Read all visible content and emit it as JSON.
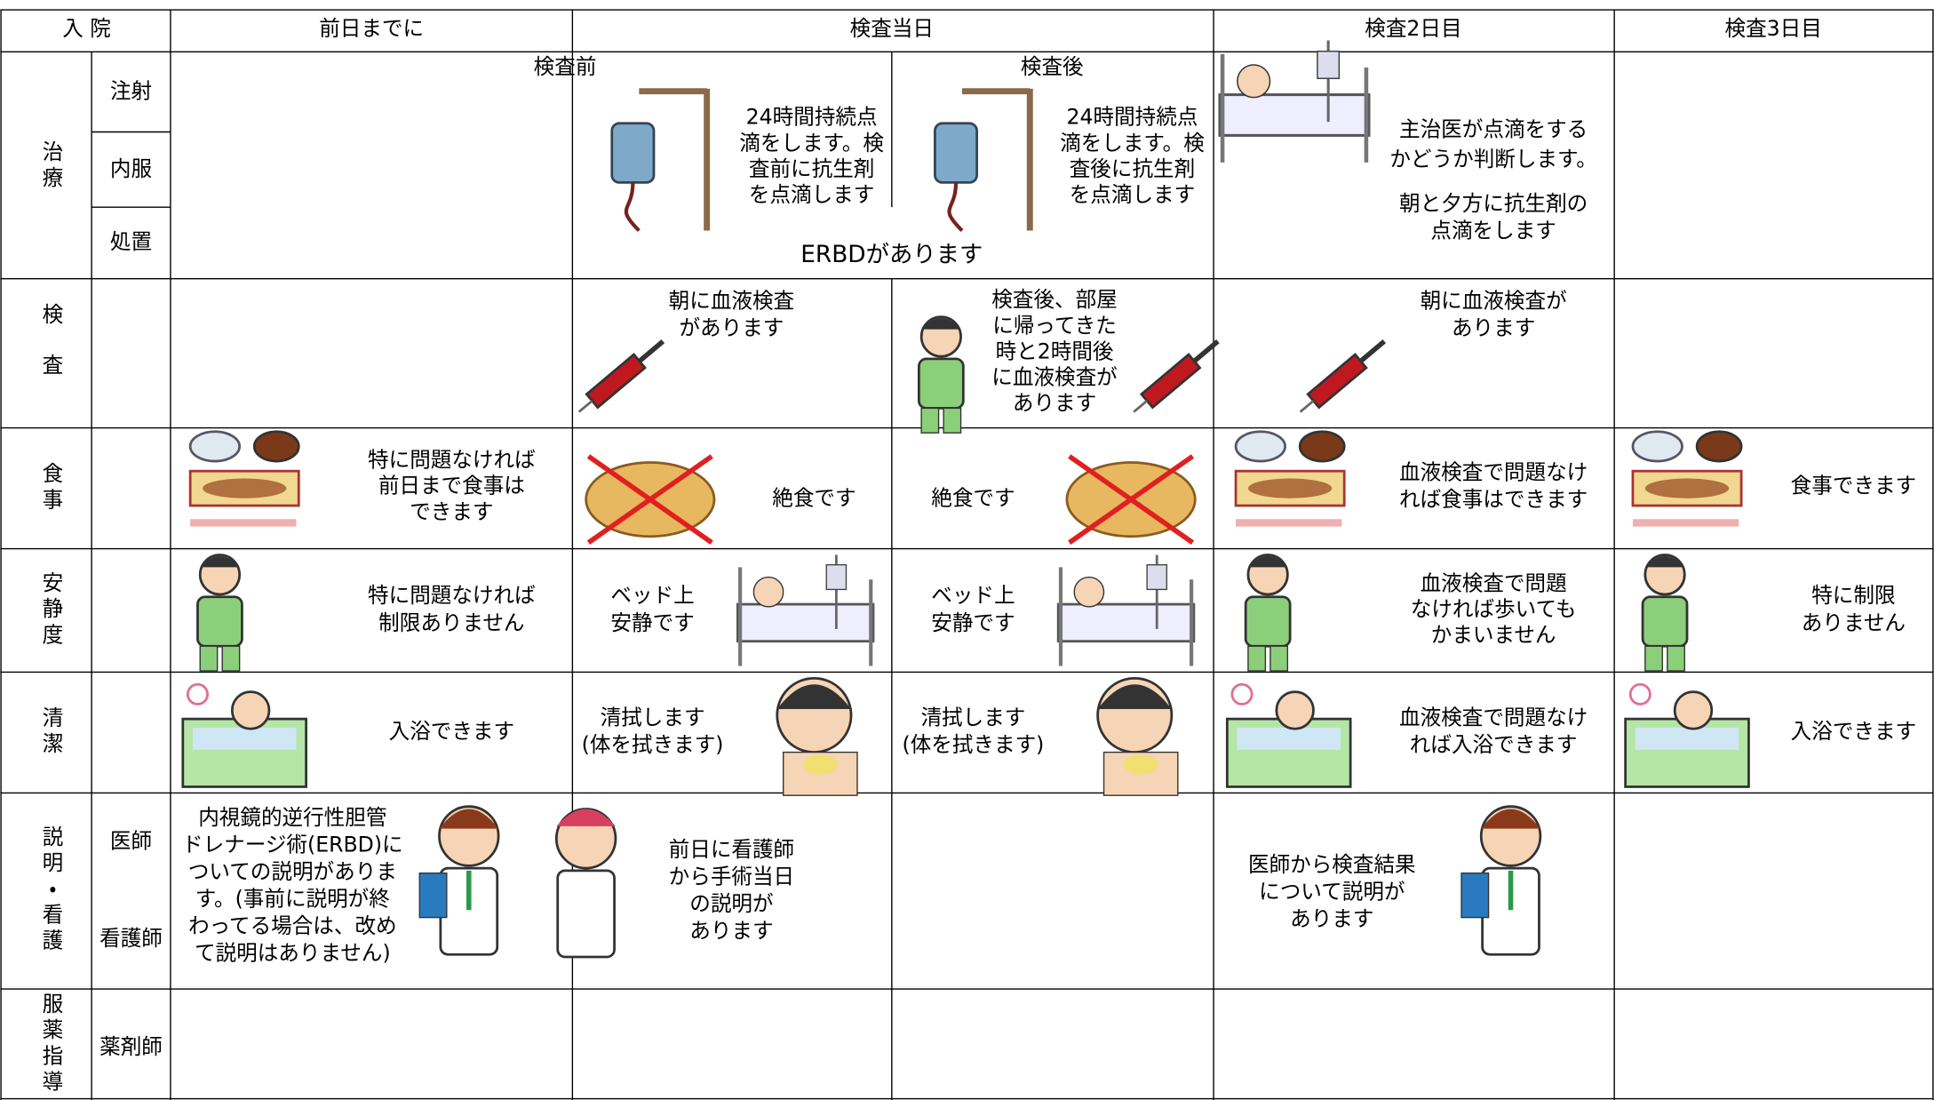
{
  "header": {
    "admission": "入 院",
    "columns": [
      "前日までに",
      "検査当日",
      "検査2日目",
      "検査3日目"
    ],
    "sub_columns": [
      "検査前",
      "検査後"
    ]
  },
  "treatment": {
    "label": "治療",
    "sublabels": [
      "注射",
      "内服",
      "処置"
    ],
    "before": [
      "24時間持続点",
      "滴をします。検",
      "査前に抗生剤",
      "を点滴します"
    ],
    "after": [
      "24時間持続点",
      "滴をします。検",
      "査後に抗生剤",
      "を点滴します"
    ],
    "day2": [
      "主治医が点滴をする",
      "かどうか判断します。"
    ],
    "day2_note": [
      "朝と夕方に抗生剤の",
      "点滴をします"
    ],
    "procedure": "ERBDがあります"
  },
  "examination": {
    "label": "検査",
    "before": [
      "朝に血液検査",
      "があります"
    ],
    "after": [
      "検査後、部屋",
      "に帰ってきた",
      "時と2時間後",
      "に血液検査が",
      "あります"
    ],
    "day2": [
      "朝に血液検査が",
      "あります"
    ]
  },
  "meal": {
    "label": "食事",
    "pre_day": [
      "特に問題なければ",
      "前日まで食事は",
      "できます"
    ],
    "before": [
      "絶食です"
    ],
    "after": [
      "絶食です"
    ],
    "day2": [
      "血液検査で問題なけ",
      "れば食事はできます"
    ],
    "day3": [
      "食事できます"
    ]
  },
  "rest": {
    "label": "安静度",
    "pre_day": [
      "特に問題なければ",
      "制限ありません"
    ],
    "before": [
      "ベッド上",
      "安静です"
    ],
    "after": [
      "ベッド上",
      "安静です"
    ],
    "day2": [
      "血液検査で問題",
      "なければ歩いても",
      "かまいません"
    ],
    "day3": [
      "特に制限",
      "ありません"
    ]
  },
  "hygiene": {
    "label": "清潔",
    "pre_day": [
      "入浴できます"
    ],
    "before": [
      "清拭します",
      "(体を拭きます)"
    ],
    "after": [
      "清拭します",
      "(体を拭きます)"
    ],
    "day2": [
      "血液検査で問題なけ",
      "れば入浴できます"
    ],
    "day3": [
      "入浴できます"
    ]
  },
  "explanation": {
    "label": "説明・看護",
    "sublabels": [
      "医師",
      "看護師"
    ],
    "pre_day_doctor": [
      "内視鏡的逆行性胆管",
      "ドレナージ術(ERBD)に",
      "ついての説明がありま",
      "す。(事前に説明が終",
      "わってる場合は、改め",
      "て説明はありません)"
    ],
    "pre_day_nurse": [
      "前日に看護師",
      "から手術当日",
      "の説明が",
      "あります"
    ],
    "day2": [
      "医師から検査結果",
      "について説明が",
      "あります"
    ]
  },
  "medication": {
    "label": "服薬指導",
    "sublabels": [
      "薬剤師"
    ]
  }
}
